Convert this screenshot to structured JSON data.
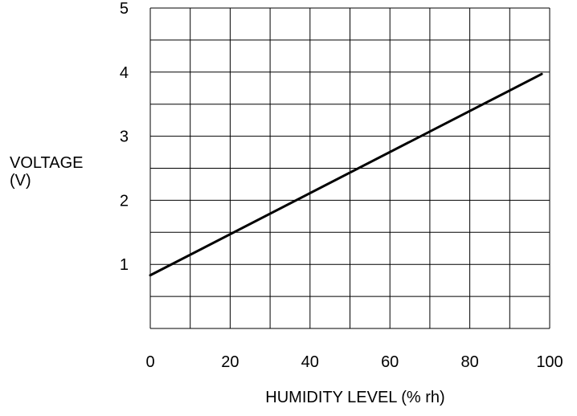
{
  "chart_data": {
    "type": "line",
    "xlabel": "HUMIDITY LEVEL (% rh)",
    "ylabel_line1": "VOLTAGE",
    "ylabel_line2": "(V)",
    "xlim": [
      0,
      100
    ],
    "ylim": [
      0,
      5
    ],
    "x_ticks": [
      0,
      20,
      40,
      60,
      80,
      100
    ],
    "y_ticks": [
      1,
      2,
      3,
      4,
      5
    ],
    "x_grid_step": 10,
    "y_grid_step": 0.5,
    "grid": true,
    "series": [
      {
        "x": [
          0,
          98
        ],
        "values": [
          0.83,
          3.97
        ]
      }
    ],
    "colors": {
      "line": "#000000",
      "grid": "#000000"
    }
  }
}
